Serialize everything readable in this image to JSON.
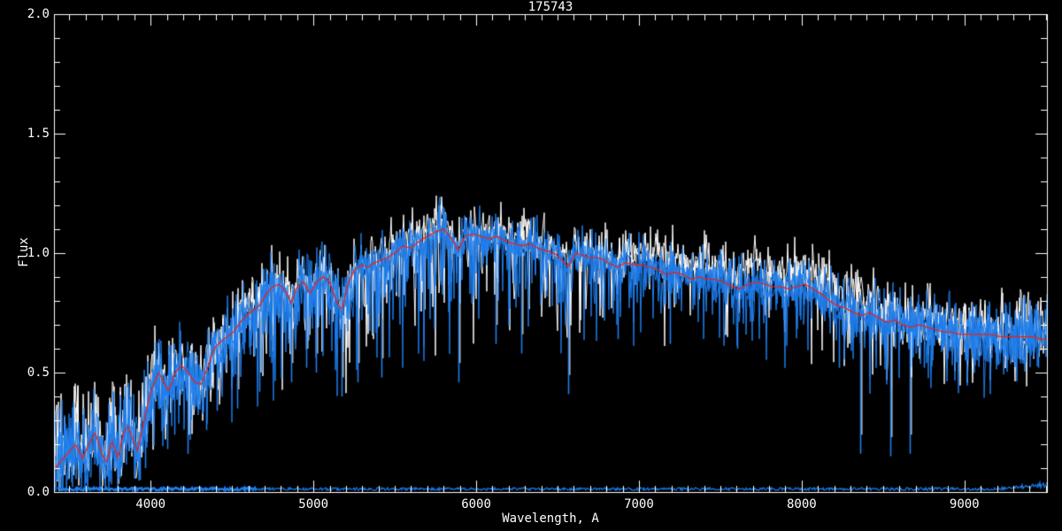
{
  "title": "175743",
  "axes": {
    "xlabel": "Wavelength, A",
    "ylabel": "Flux",
    "x_ticks": [
      {
        "value": 4000,
        "label": "4000"
      },
      {
        "value": 5000,
        "label": "5000"
      },
      {
        "value": 6000,
        "label": "6000"
      },
      {
        "value": 7000,
        "label": "7000"
      },
      {
        "value": 8000,
        "label": "8000"
      },
      {
        "value": 9000,
        "label": "9000"
      }
    ],
    "y_ticks": [
      {
        "value": 0.0,
        "label": "0.0"
      },
      {
        "value": 0.5,
        "label": "0.5"
      },
      {
        "value": 1.0,
        "label": "1.0"
      },
      {
        "value": 1.5,
        "label": "1.5"
      },
      {
        "value": 2.0,
        "label": "2.0"
      }
    ],
    "x_minor_step": 100,
    "y_minor_step": 0.1
  },
  "colors": {
    "background": "#000000",
    "axis": "#FFFFFF",
    "observed_white": "#FFFFFF",
    "observed_blue": "#1E7DEB",
    "model_red": "#E8231E"
  },
  "chart_data": {
    "type": "line",
    "title": "175743",
    "xlabel": "Wavelength, A",
    "ylabel": "Flux",
    "xlim": [
      3406,
      9507
    ],
    "ylim": [
      0.0,
      2.0
    ],
    "grid": false,
    "legend": "none",
    "series": [
      {
        "name": "observed-spectrum-white",
        "color": "#FFFFFF",
        "style": "noisy",
        "derived": "model_fit + white_offset_profile + noise"
      },
      {
        "name": "observed-spectrum-blue",
        "color": "#1E7DEB",
        "style": "noisy",
        "derived": "model_fit + noise"
      },
      {
        "name": "model-fit-red",
        "color": "#E8231E",
        "style": "smooth"
      }
    ],
    "model_x": [
      3406,
      3450,
      3500,
      3540,
      3580,
      3620,
      3660,
      3700,
      3730,
      3760,
      3800,
      3830,
      3860,
      3890,
      3920,
      3950,
      3980,
      4010,
      4050,
      4080,
      4110,
      4150,
      4190,
      4230,
      4270,
      4310,
      4350,
      4390,
      4430,
      4470,
      4510,
      4550,
      4590,
      4630,
      4670,
      4710,
      4750,
      4790,
      4830,
      4865,
      4900,
      4940,
      4980,
      5020,
      5060,
      5100,
      5140,
      5175,
      5215,
      5255,
      5295,
      5335,
      5375,
      5415,
      5455,
      5500,
      5550,
      5600,
      5650,
      5700,
      5750,
      5800,
      5850,
      5890,
      5930,
      5980,
      6030,
      6080,
      6130,
      6180,
      6230,
      6280,
      6330,
      6380,
      6430,
      6480,
      6530,
      6565,
      6610,
      6660,
      6710,
      6760,
      6810,
      6870,
      6920,
      6970,
      7020,
      7070,
      7120,
      7170,
      7220,
      7270,
      7320,
      7370,
      7420,
      7470,
      7520,
      7570,
      7620,
      7670,
      7720,
      7770,
      7820,
      7870,
      7920,
      7970,
      8020,
      8070,
      8120,
      8170,
      8220,
      8270,
      8320,
      8370,
      8420,
      8470,
      8520,
      8570,
      8620,
      8670,
      8720,
      8770,
      8820,
      8870,
      8920,
      8970,
      9020,
      9070,
      9120,
      9170,
      9220,
      9270,
      9320,
      9370,
      9420,
      9470,
      9507
    ],
    "model_y": [
      0.09,
      0.13,
      0.17,
      0.2,
      0.14,
      0.2,
      0.25,
      0.16,
      0.12,
      0.22,
      0.14,
      0.24,
      0.28,
      0.22,
      0.17,
      0.27,
      0.36,
      0.44,
      0.5,
      0.46,
      0.42,
      0.5,
      0.53,
      0.5,
      0.46,
      0.45,
      0.52,
      0.6,
      0.63,
      0.65,
      0.67,
      0.71,
      0.74,
      0.76,
      0.78,
      0.83,
      0.86,
      0.87,
      0.84,
      0.79,
      0.86,
      0.88,
      0.83,
      0.88,
      0.9,
      0.88,
      0.8,
      0.76,
      0.88,
      0.93,
      0.95,
      0.94,
      0.96,
      0.97,
      0.98,
      1.0,
      1.03,
      1.02,
      1.05,
      1.07,
      1.09,
      1.1,
      1.06,
      1.01,
      1.07,
      1.08,
      1.07,
      1.06,
      1.07,
      1.05,
      1.04,
      1.03,
      1.04,
      1.02,
      1.01,
      1.0,
      0.97,
      0.94,
      1.0,
      0.99,
      0.98,
      0.98,
      0.96,
      0.94,
      0.96,
      0.95,
      0.95,
      0.94,
      0.93,
      0.91,
      0.92,
      0.91,
      0.89,
      0.9,
      0.89,
      0.89,
      0.88,
      0.86,
      0.85,
      0.87,
      0.88,
      0.87,
      0.86,
      0.86,
      0.85,
      0.86,
      0.87,
      0.85,
      0.83,
      0.8,
      0.78,
      0.77,
      0.75,
      0.74,
      0.75,
      0.73,
      0.71,
      0.72,
      0.7,
      0.69,
      0.7,
      0.69,
      0.68,
      0.67,
      0.67,
      0.66,
      0.66,
      0.66,
      0.66,
      0.66,
      0.65,
      0.65,
      0.65,
      0.65,
      0.65,
      0.64,
      0.64
    ],
    "absorption_lines": [
      [
        3933,
        0.05
      ],
      [
        3968,
        0.1
      ],
      [
        4101,
        0.18
      ],
      [
        4144,
        0.24
      ],
      [
        4226,
        0.16
      ],
      [
        4340,
        0.26
      ],
      [
        4405,
        0.34
      ],
      [
        4530,
        0.35
      ],
      [
        4668,
        0.42
      ],
      [
        4861,
        0.46
      ],
      [
        4957,
        0.52
      ],
      [
        5015,
        0.5
      ],
      [
        5172,
        0.4
      ],
      [
        5270,
        0.46
      ],
      [
        5420,
        0.48
      ],
      [
        5890,
        0.46
      ],
      [
        6122,
        0.62
      ],
      [
        6277,
        0.58
      ],
      [
        6563,
        0.41
      ],
      [
        6870,
        0.64
      ],
      [
        7190,
        0.62
      ],
      [
        7605,
        0.6
      ],
      [
        8230,
        0.52
      ],
      [
        8360,
        0.16
      ],
      [
        8542,
        0.15
      ],
      [
        8665,
        0.16
      ],
      [
        8750,
        0.52
      ],
      [
        9020,
        0.55
      ],
      [
        9450,
        0.52
      ]
    ],
    "noise": {
      "sigma_profile": [
        [
          3406,
          0.1
        ],
        [
          3800,
          0.085
        ],
        [
          4200,
          0.06
        ],
        [
          4700,
          0.045
        ],
        [
          5200,
          0.04
        ],
        [
          6000,
          0.034
        ],
        [
          7000,
          0.034
        ],
        [
          8000,
          0.042
        ],
        [
          8800,
          0.05
        ],
        [
          9507,
          0.06
        ]
      ],
      "dip_prob_profile": [
        [
          3406,
          0.3
        ],
        [
          4400,
          0.22
        ],
        [
          5000,
          0.2
        ],
        [
          6000,
          0.16
        ],
        [
          6800,
          0.11
        ],
        [
          7600,
          0.1
        ],
        [
          8400,
          0.13
        ],
        [
          9507,
          0.13
        ]
      ],
      "dip_depth_profile": [
        [
          3406,
          0.85
        ],
        [
          4400,
          0.6
        ],
        [
          5500,
          0.55
        ],
        [
          6500,
          0.45
        ],
        [
          7500,
          0.4
        ],
        [
          8500,
          0.5
        ],
        [
          9507,
          0.45
        ]
      ],
      "white_offset_profile": [
        [
          3406,
          0.02
        ],
        [
          6800,
          0.025
        ],
        [
          7050,
          0.06
        ],
        [
          8300,
          0.06
        ],
        [
          8600,
          0.035
        ],
        [
          9507,
          0.025
        ]
      ]
    },
    "error_spectrum": {
      "name": "error-spectrum",
      "color": "#1E7DEB",
      "flux_level": 0.013,
      "right_end_flux": 0.03,
      "thick_below_wavelength": 4650
    }
  }
}
